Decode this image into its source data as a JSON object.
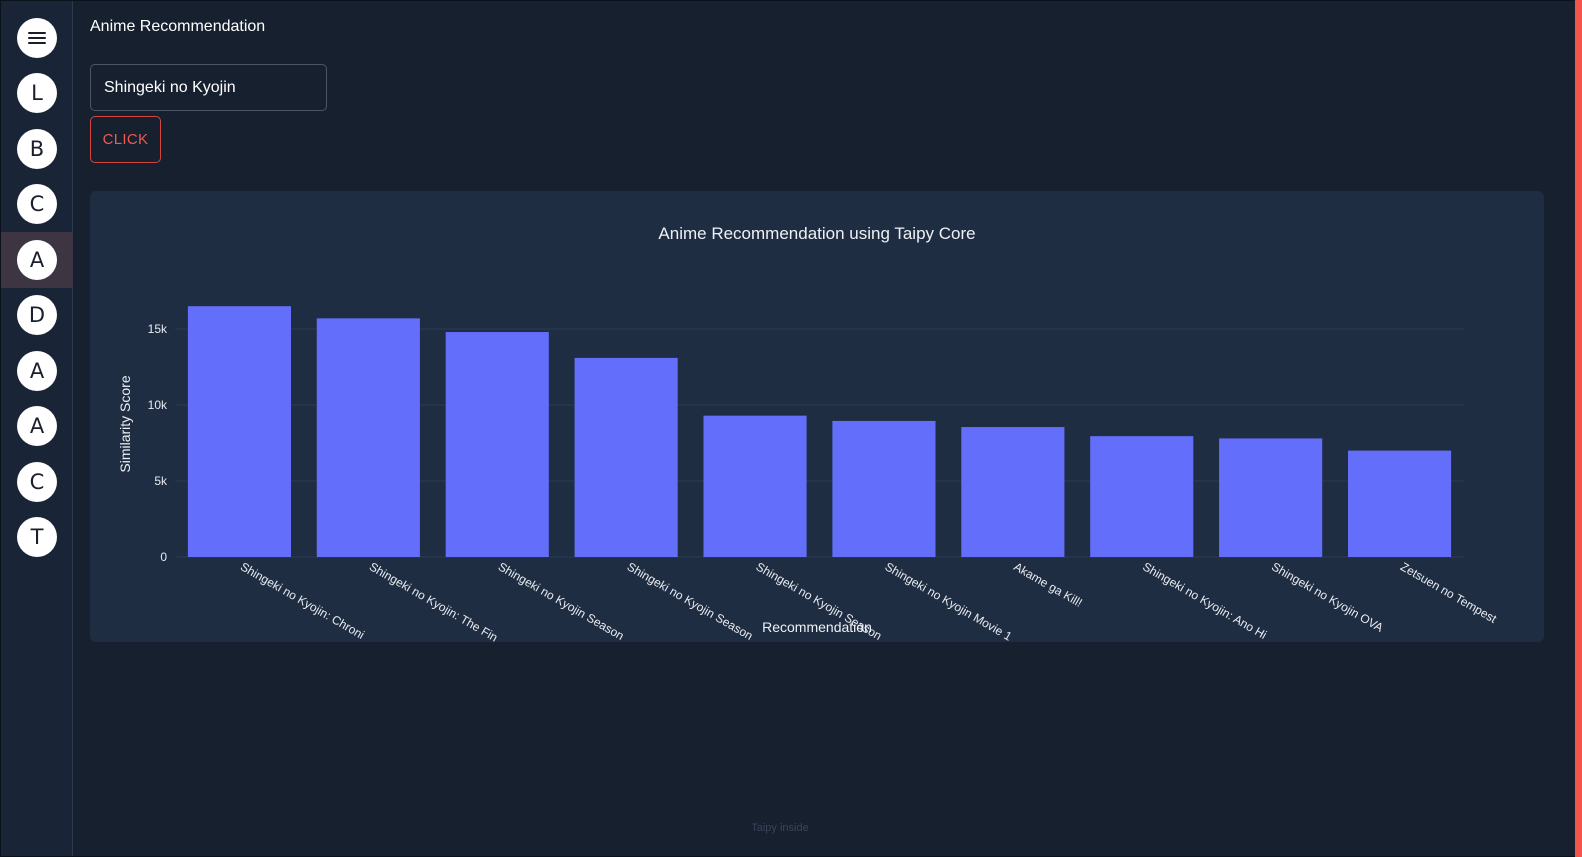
{
  "sidebar": {
    "menu_icon": "hamburger-menu-icon",
    "items": [
      {
        "label": "L",
        "active": false
      },
      {
        "label": "B",
        "active": false
      },
      {
        "label": "C",
        "active": false
      },
      {
        "label": "A",
        "active": true
      },
      {
        "label": "D",
        "active": false
      },
      {
        "label": "A",
        "active": false
      },
      {
        "label": "A",
        "active": false
      },
      {
        "label": "C",
        "active": false
      },
      {
        "label": "T",
        "active": false
      }
    ]
  },
  "header": {
    "title": "Anime Recommendation"
  },
  "search": {
    "value": "Shingeki no Kyojin"
  },
  "actions": {
    "click_label": "CLICK"
  },
  "colors": {
    "accent": "#f05a4f",
    "bar": "#636efa",
    "background": "#16202f",
    "card": "#1f2d43"
  },
  "chart_data": {
    "type": "bar",
    "title": "Anime Recommendation using Taipy Core",
    "xlabel": "Recommendation",
    "ylabel": "Similarity Score",
    "categories": [
      "Shingeki no Kyojin: Chroni",
      "Shingeki no Kyojin: The Fin",
      "Shingeki no Kyojin Season",
      "Shingeki no Kyojin Season",
      "Shingeki no Kyojin Season",
      "Shingeki no Kyojin Movie 1",
      "Akame ga Kill!",
      "Shingeki no Kyojin: Ano Hi",
      "Shingeki no Kyojin OVA",
      "Zetsuen no Tempest"
    ],
    "values": [
      16500,
      15700,
      14800,
      13100,
      9300,
      8950,
      8550,
      7950,
      7800,
      7000
    ],
    "ylim": [
      0,
      17500
    ],
    "yticks": [
      0,
      5000,
      10000,
      15000
    ],
    "ytick_labels": [
      "0",
      "5k",
      "10k",
      "15k"
    ],
    "grid": true
  },
  "footer": {
    "text": "Taipy inside"
  }
}
